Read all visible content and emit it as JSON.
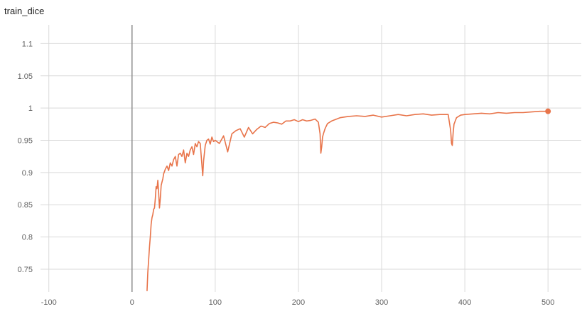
{
  "chart_data": {
    "type": "line",
    "title": "train_dice",
    "xlabel": "",
    "ylabel": "",
    "xlim": [
      -110,
      540
    ],
    "ylim": [
      0.7147,
      1.1291
    ],
    "x_ticks": [
      -100,
      0,
      100,
      200,
      300,
      400,
      500
    ],
    "x_tick_labels": [
      "-100",
      "0",
      "100",
      "200",
      "300",
      "400",
      "500"
    ],
    "y_ticks": [
      0.75,
      0.8,
      0.85,
      0.9,
      0.95,
      1,
      1.05,
      1.1
    ],
    "y_tick_labels": [
      "0.75",
      "0.8",
      "0.85",
      "0.9",
      "0.95",
      "1",
      "1.05",
      "1.1"
    ],
    "grid": true,
    "series": [
      {
        "color": "#e8744a",
        "x": [
          18,
          19,
          20,
          21,
          22,
          23,
          24,
          25,
          26,
          27,
          28,
          29,
          30,
          31,
          32,
          33,
          34,
          35,
          36,
          37,
          38,
          40,
          42,
          44,
          46,
          48,
          50,
          52,
          54,
          56,
          58,
          60,
          62,
          64,
          66,
          68,
          70,
          72,
          74,
          76,
          78,
          80,
          82,
          84,
          85,
          86,
          88,
          90,
          92,
          94,
          96,
          98,
          100,
          105,
          110,
          115,
          120,
          125,
          130,
          135,
          140,
          145,
          150,
          155,
          160,
          165,
          170,
          175,
          180,
          185,
          190,
          195,
          200,
          205,
          210,
          215,
          220,
          224,
          226,
          227,
          228,
          229,
          230,
          232,
          235,
          240,
          250,
          260,
          270,
          280,
          290,
          300,
          310,
          320,
          330,
          340,
          350,
          360,
          370,
          380,
          383,
          384,
          385,
          386,
          387,
          390,
          395,
          400,
          410,
          420,
          430,
          440,
          450,
          460,
          470,
          480,
          490,
          500
        ],
        "y": [
          0.716,
          0.745,
          0.765,
          0.785,
          0.8,
          0.82,
          0.83,
          0.835,
          0.843,
          0.845,
          0.86,
          0.878,
          0.875,
          0.888,
          0.87,
          0.845,
          0.86,
          0.88,
          0.885,
          0.89,
          0.898,
          0.905,
          0.91,
          0.903,
          0.915,
          0.91,
          0.92,
          0.925,
          0.91,
          0.928,
          0.93,
          0.925,
          0.935,
          0.915,
          0.93,
          0.925,
          0.935,
          0.94,
          0.928,
          0.945,
          0.94,
          0.948,
          0.945,
          0.912,
          0.895,
          0.918,
          0.942,
          0.95,
          0.952,
          0.944,
          0.955,
          0.948,
          0.95,
          0.945,
          0.957,
          0.932,
          0.96,
          0.965,
          0.968,
          0.955,
          0.97,
          0.96,
          0.967,
          0.972,
          0.97,
          0.976,
          0.978,
          0.977,
          0.975,
          0.98,
          0.98,
          0.982,
          0.979,
          0.982,
          0.98,
          0.981,
          0.983,
          0.978,
          0.96,
          0.93,
          0.94,
          0.955,
          0.96,
          0.968,
          0.976,
          0.98,
          0.985,
          0.987,
          0.988,
          0.987,
          0.989,
          0.986,
          0.988,
          0.99,
          0.988,
          0.99,
          0.991,
          0.989,
          0.99,
          0.99,
          0.965,
          0.945,
          0.942,
          0.962,
          0.975,
          0.985,
          0.989,
          0.99,
          0.991,
          0.992,
          0.991,
          0.993,
          0.992,
          0.993,
          0.993,
          0.994,
          0.995,
          0.995
        ]
      }
    ],
    "last_point": {
      "x": 500,
      "y": 0.995
    }
  }
}
